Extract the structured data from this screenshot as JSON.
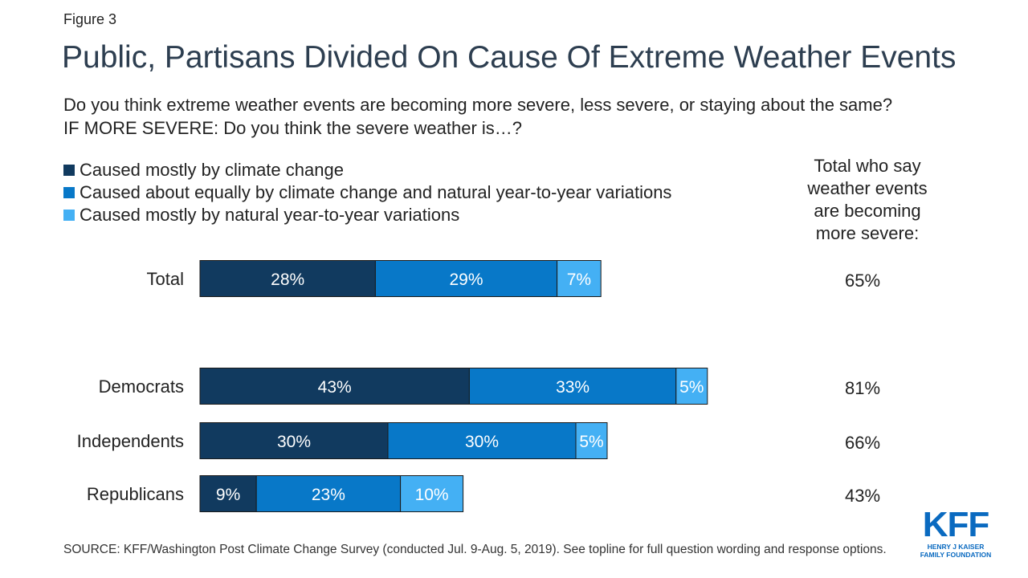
{
  "figure_label": "Figure 3",
  "title": "Public, Partisans Divided On Cause Of Extreme Weather Events",
  "subtitle": [
    "Do you think extreme weather events are becoming more severe, less severe, or staying about the same?",
    "IF MORE SEVERE: Do you think the severe weather is…?"
  ],
  "side_header": [
    "Total who say",
    "weather events",
    "are becoming",
    "more severe:"
  ],
  "source": "SOURCE: KFF/Washington Post Climate Change Survey (conducted Jul. 9-Aug. 5, 2019). See topline for full question wording and response options.",
  "logo": {
    "main": "KFF",
    "sub1": "HENRY J KAISER",
    "sub2": "FAMILY FOUNDATION"
  },
  "colors": {
    "dark": "#113a5f",
    "mid": "#0878c8",
    "light": "#44b0f4"
  },
  "chart_data": {
    "type": "bar",
    "orientation": "horizontal",
    "stacked": true,
    "categories": [
      "Total",
      "Democrats",
      "Independents",
      "Republicans"
    ],
    "series": [
      {
        "name": "Caused mostly by climate change",
        "values": [
          28,
          43,
          30,
          9
        ],
        "labels": [
          "28%",
          "43%",
          "30%",
          "9%"
        ],
        "color": "#113a5f"
      },
      {
        "name": "Caused about equally by climate change and natural year-to-year variations",
        "values": [
          29,
          33,
          30,
          23
        ],
        "labels": [
          "29%",
          "33%",
          "30%",
          "23%"
        ],
        "color": "#0878c8"
      },
      {
        "name": "Caused mostly by natural year-to-year variations",
        "values": [
          7,
          5,
          5,
          10
        ],
        "labels": [
          "7%",
          "5%",
          "5%",
          "10%"
        ],
        "color": "#44b0f4"
      }
    ],
    "totals": [
      "65%",
      "81%",
      "66%",
      "43%"
    ],
    "xlim": [
      0,
      100
    ],
    "legend_position": "top-left",
    "grid": false
  }
}
